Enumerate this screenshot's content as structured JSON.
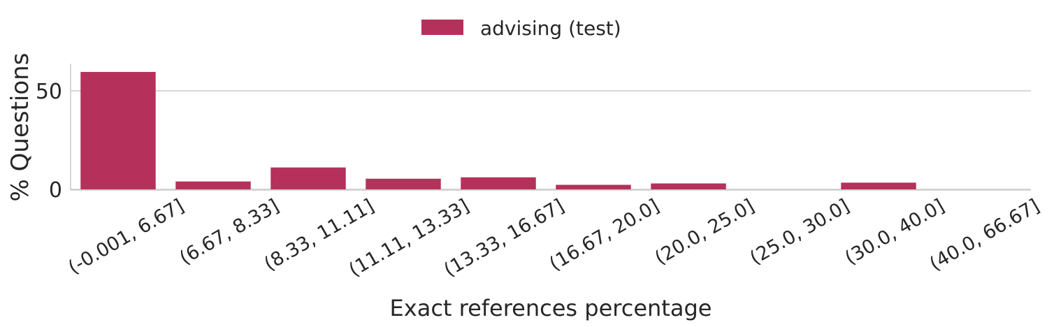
{
  "chart_data": {
    "type": "bar",
    "categories": [
      "(-0.001, 6.67]",
      "(6.67, 8.33]",
      "(8.33, 11.11]",
      "(11.11, 13.33]",
      "(13.33, 16.67]",
      "(16.67, 20.0]",
      "(20.0, 25.0]",
      "(25.0, 30.0]",
      "(30.0, 40.0]",
      "(40.0, 66.67]"
    ],
    "series": [
      {
        "name": "advising (test)",
        "values": [
          59.6,
          4.0,
          11.1,
          5.4,
          6.1,
          2.3,
          3.0,
          0.0,
          3.4,
          0.0
        ],
        "color": "#b5305a"
      }
    ],
    "xlabel": "Exact references percentage",
    "ylabel": "% Questions",
    "ylim": [
      0,
      63
    ],
    "yticks": [
      0,
      50
    ],
    "grid": "y",
    "legend": "top-center"
  }
}
